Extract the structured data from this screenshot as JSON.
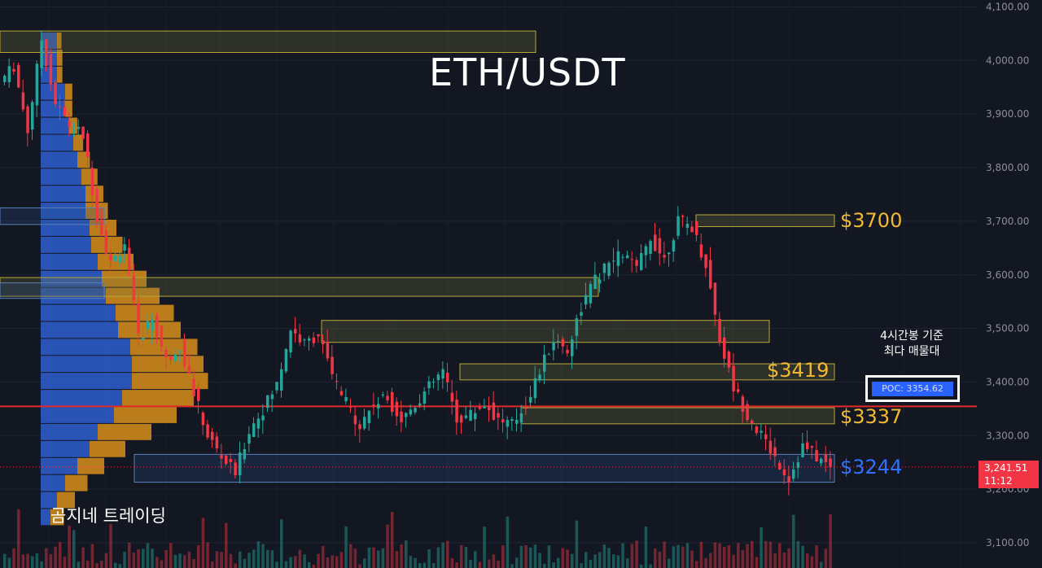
{
  "title": "ETH/USDT",
  "brand": "곰지네 트레이딩",
  "poc_note": [
    "4시간봉 기준",
    "최다 매물대"
  ],
  "poc_label": "POC: 3354.62",
  "current_price": "3,241.51",
  "countdown": "11:12",
  "colors": {
    "background": "#131722",
    "up": "#26a69a",
    "down": "#f23645",
    "zone_label": "#f5b930",
    "support_label": "#2e72ff",
    "vp_blue": "#2e5fcf",
    "vp_orange": "#d98f1a",
    "poc_line": "#e12a2a"
  },
  "chart_data": {
    "type": "candlestick",
    "instrument": "ETH/USDT",
    "timeframe": "4h",
    "ylim": [
      3080,
      4110
    ],
    "y_ticks": [
      "3,100.00",
      "3,200.00",
      "3,300.00",
      "3,400.00",
      "3,500.00",
      "3,600.00",
      "3,700.00",
      "3,800.00",
      "3,900.00",
      "4,000.00",
      "4,100.00"
    ],
    "y_tick_values": [
      3100,
      3200,
      3300,
      3400,
      3500,
      3600,
      3700,
      3800,
      3900,
      4000,
      4100
    ],
    "close_path": [
      3960,
      3990,
      3870,
      4040,
      3920,
      3880,
      3860,
      3710,
      3620,
      3660,
      3480,
      3520,
      3440,
      3470,
      3380,
      3300,
      3260,
      3230,
      3310,
      3350,
      3395,
      3500,
      3470,
      3490,
      3410,
      3360,
      3320,
      3360,
      3370,
      3330,
      3360,
      3390,
      3420,
      3330,
      3340,
      3360,
      3330,
      3320,
      3360,
      3420,
      3480,
      3460,
      3540,
      3590,
      3620,
      3640,
      3610,
      3670,
      3630,
      3700,
      3690,
      3620,
      3480,
      3390,
      3340,
      3300,
      3260,
      3220,
      3280,
      3260,
      3240
    ],
    "zones": [
      {
        "low": 4015,
        "high": 4055,
        "label": ""
      },
      {
        "low": 3560,
        "high": 3595,
        "label": ""
      },
      {
        "low": 3474,
        "high": 3515,
        "label": ""
      },
      {
        "low": 3690,
        "high": 3712,
        "label": "$3700"
      },
      {
        "low": 3404,
        "high": 3434,
        "label": "$3419"
      },
      {
        "low": 3322,
        "high": 3352,
        "label": "$3337"
      }
    ],
    "support_zone": {
      "low": 3213,
      "high": 3265,
      "label": "$3244"
    },
    "poc": 3354.62,
    "volume_profile_note": "blue/orange horizontal histogram on left"
  }
}
